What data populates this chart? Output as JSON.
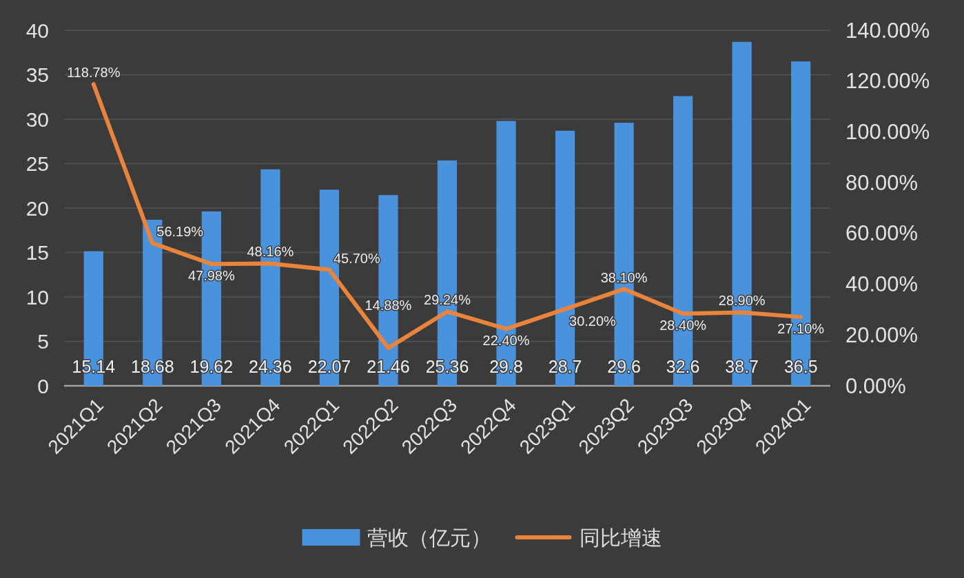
{
  "chart_data": {
    "type": "bar",
    "categories": [
      "2021Q1",
      "2021Q2",
      "2021Q3",
      "2021Q4",
      "2022Q1",
      "2022Q2",
      "2022Q3",
      "2022Q4",
      "2023Q1",
      "2023Q2",
      "2023Q3",
      "2023Q4",
      "2024Q1"
    ],
    "series": [
      {
        "name": "营收（亿元）",
        "color": "#4a92dc",
        "values": [
          15.14,
          18.68,
          19.62,
          24.36,
          22.07,
          21.46,
          25.36,
          29.8,
          28.7,
          29.6,
          32.6,
          38.7,
          36.5
        ],
        "value_labels": [
          "15.14",
          "18.68",
          "19.62",
          "24.36",
          "22.07",
          "21.46",
          "25.36",
          "29.8",
          "28.7",
          "29.6",
          "32.6",
          "38.7",
          "36.5"
        ]
      },
      {
        "name": "同比增速",
        "type": "line",
        "axis": "y2",
        "color": "#e8843c",
        "values": [
          118.78,
          56.19,
          47.98,
          48.16,
          45.7,
          14.88,
          29.24,
          22.4,
          30.2,
          38.1,
          28.4,
          28.9,
          27.1
        ],
        "value_labels": [
          "118.78%",
          "56.19%",
          "47.98%",
          "48.16%",
          "45.70%",
          "14.88%",
          "29.24%",
          "22.40%",
          "30.20%",
          "38.10%",
          "28.40%",
          "28.90%",
          "27.10%"
        ]
      }
    ],
    "ylim": [
      0,
      40
    ],
    "yticks": [
      0,
      5,
      10,
      15,
      20,
      25,
      30,
      35,
      40
    ],
    "y2lim": [
      0,
      140
    ],
    "y2ticks": [
      {
        "value": 0,
        "label": "0.00%"
      },
      {
        "value": 20,
        "label": "20.00%"
      },
      {
        "value": 40,
        "label": "40.00%"
      },
      {
        "value": 60,
        "label": "60.00%"
      },
      {
        "value": 80,
        "label": "80.00%"
      },
      {
        "value": 100,
        "label": "100.00%"
      },
      {
        "value": 120,
        "label": "120.00%"
      },
      {
        "value": 140,
        "label": "140.00%"
      }
    ],
    "grid": "y",
    "legend": "bottom",
    "line_style": "solid"
  }
}
